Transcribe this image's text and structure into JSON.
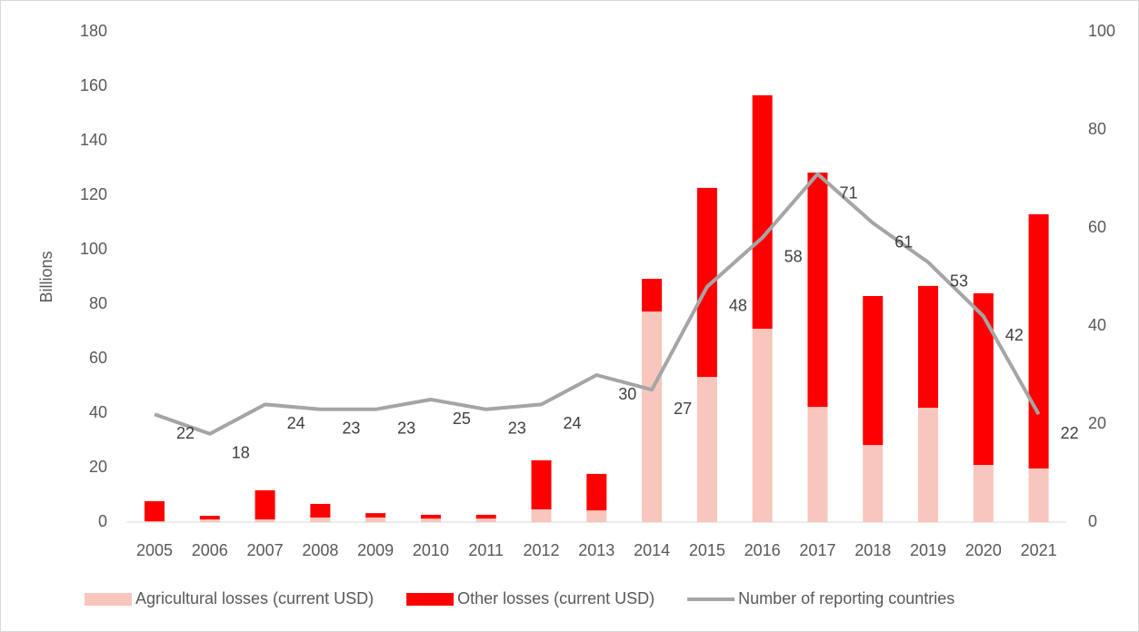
{
  "chart_data": {
    "type": "bar",
    "stacked": true,
    "y_label": "Billions",
    "categories": [
      "2005",
      "2006",
      "2007",
      "2008",
      "2009",
      "2010",
      "2011",
      "2012",
      "2013",
      "2014",
      "2015",
      "2016",
      "2017",
      "2018",
      "2019",
      "2020",
      "2021"
    ],
    "series": [
      {
        "name": "Agricultural losses (current USD)",
        "color": "#f8c6bd",
        "values": [
          0.3,
          1,
          1,
          1.7,
          1.7,
          1.3,
          1.3,
          4.7,
          4.3,
          77.3,
          53.3,
          71,
          42.3,
          28.3,
          42,
          21,
          19.7
        ]
      },
      {
        "name": "Other losses (current USD)",
        "color": "#ff0000",
        "values": [
          7.4,
          1.3,
          10.7,
          5,
          1.6,
          1.4,
          1.4,
          18,
          13.4,
          12,
          69.4,
          85.7,
          86,
          54.7,
          44.7,
          63,
          93.3
        ]
      },
      {
        "name": "Number of reporting countries",
        "type": "line",
        "axis": "y2",
        "color": "#a5a5a5",
        "values": [
          22,
          18,
          24,
          23,
          23,
          25,
          23,
          24,
          30,
          27,
          48,
          58,
          71,
          61,
          53,
          42,
          22
        ]
      }
    ],
    "ylim": [
      0,
      180
    ],
    "yticks": [
      0,
      20,
      40,
      60,
      80,
      100,
      120,
      140,
      160,
      180
    ],
    "y2lim": [
      0,
      100
    ],
    "y2ticks": [
      0,
      20,
      40,
      60,
      80,
      100
    ],
    "legend": "bottom"
  }
}
